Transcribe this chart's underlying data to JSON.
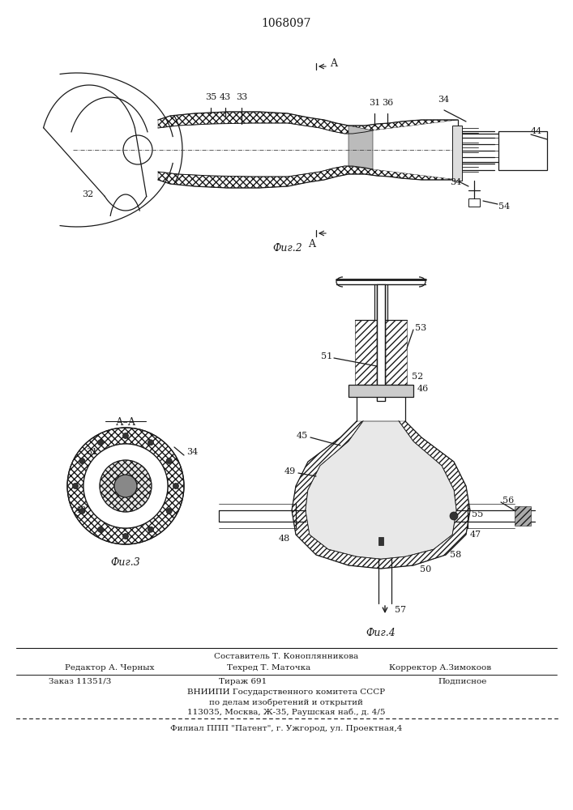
{
  "title": "1068097",
  "bg_color": "#ffffff",
  "line_color": "#1a1a1a",
  "fig2_caption": "Фиг.2",
  "fig3_caption": "Фиг.3",
  "fig4_caption": "Фиг.4",
  "footer_editor": "Редактор А. Черных",
  "footer_comp": "Составитель Т. Коноплянникова",
  "footer_tech": "Техред Т. Маточка",
  "footer_corr": "Корректор А.Зимокоов",
  "footer_order": "Заказ 11351/3",
  "footer_tirazh": "Тираж 691",
  "footer_podp": "Подписное",
  "footer_vniip1": "ВНИИПИ Государственного комитета СССР",
  "footer_vniip2": "по делам изобретений и открытий",
  "footer_vniip3": "113035, Москва, Ж-35, Раушская наб., д. 4/5",
  "footer_filial": "Филиал ППП \"Патент\", г. Ужгород, ул. Проектная,4"
}
